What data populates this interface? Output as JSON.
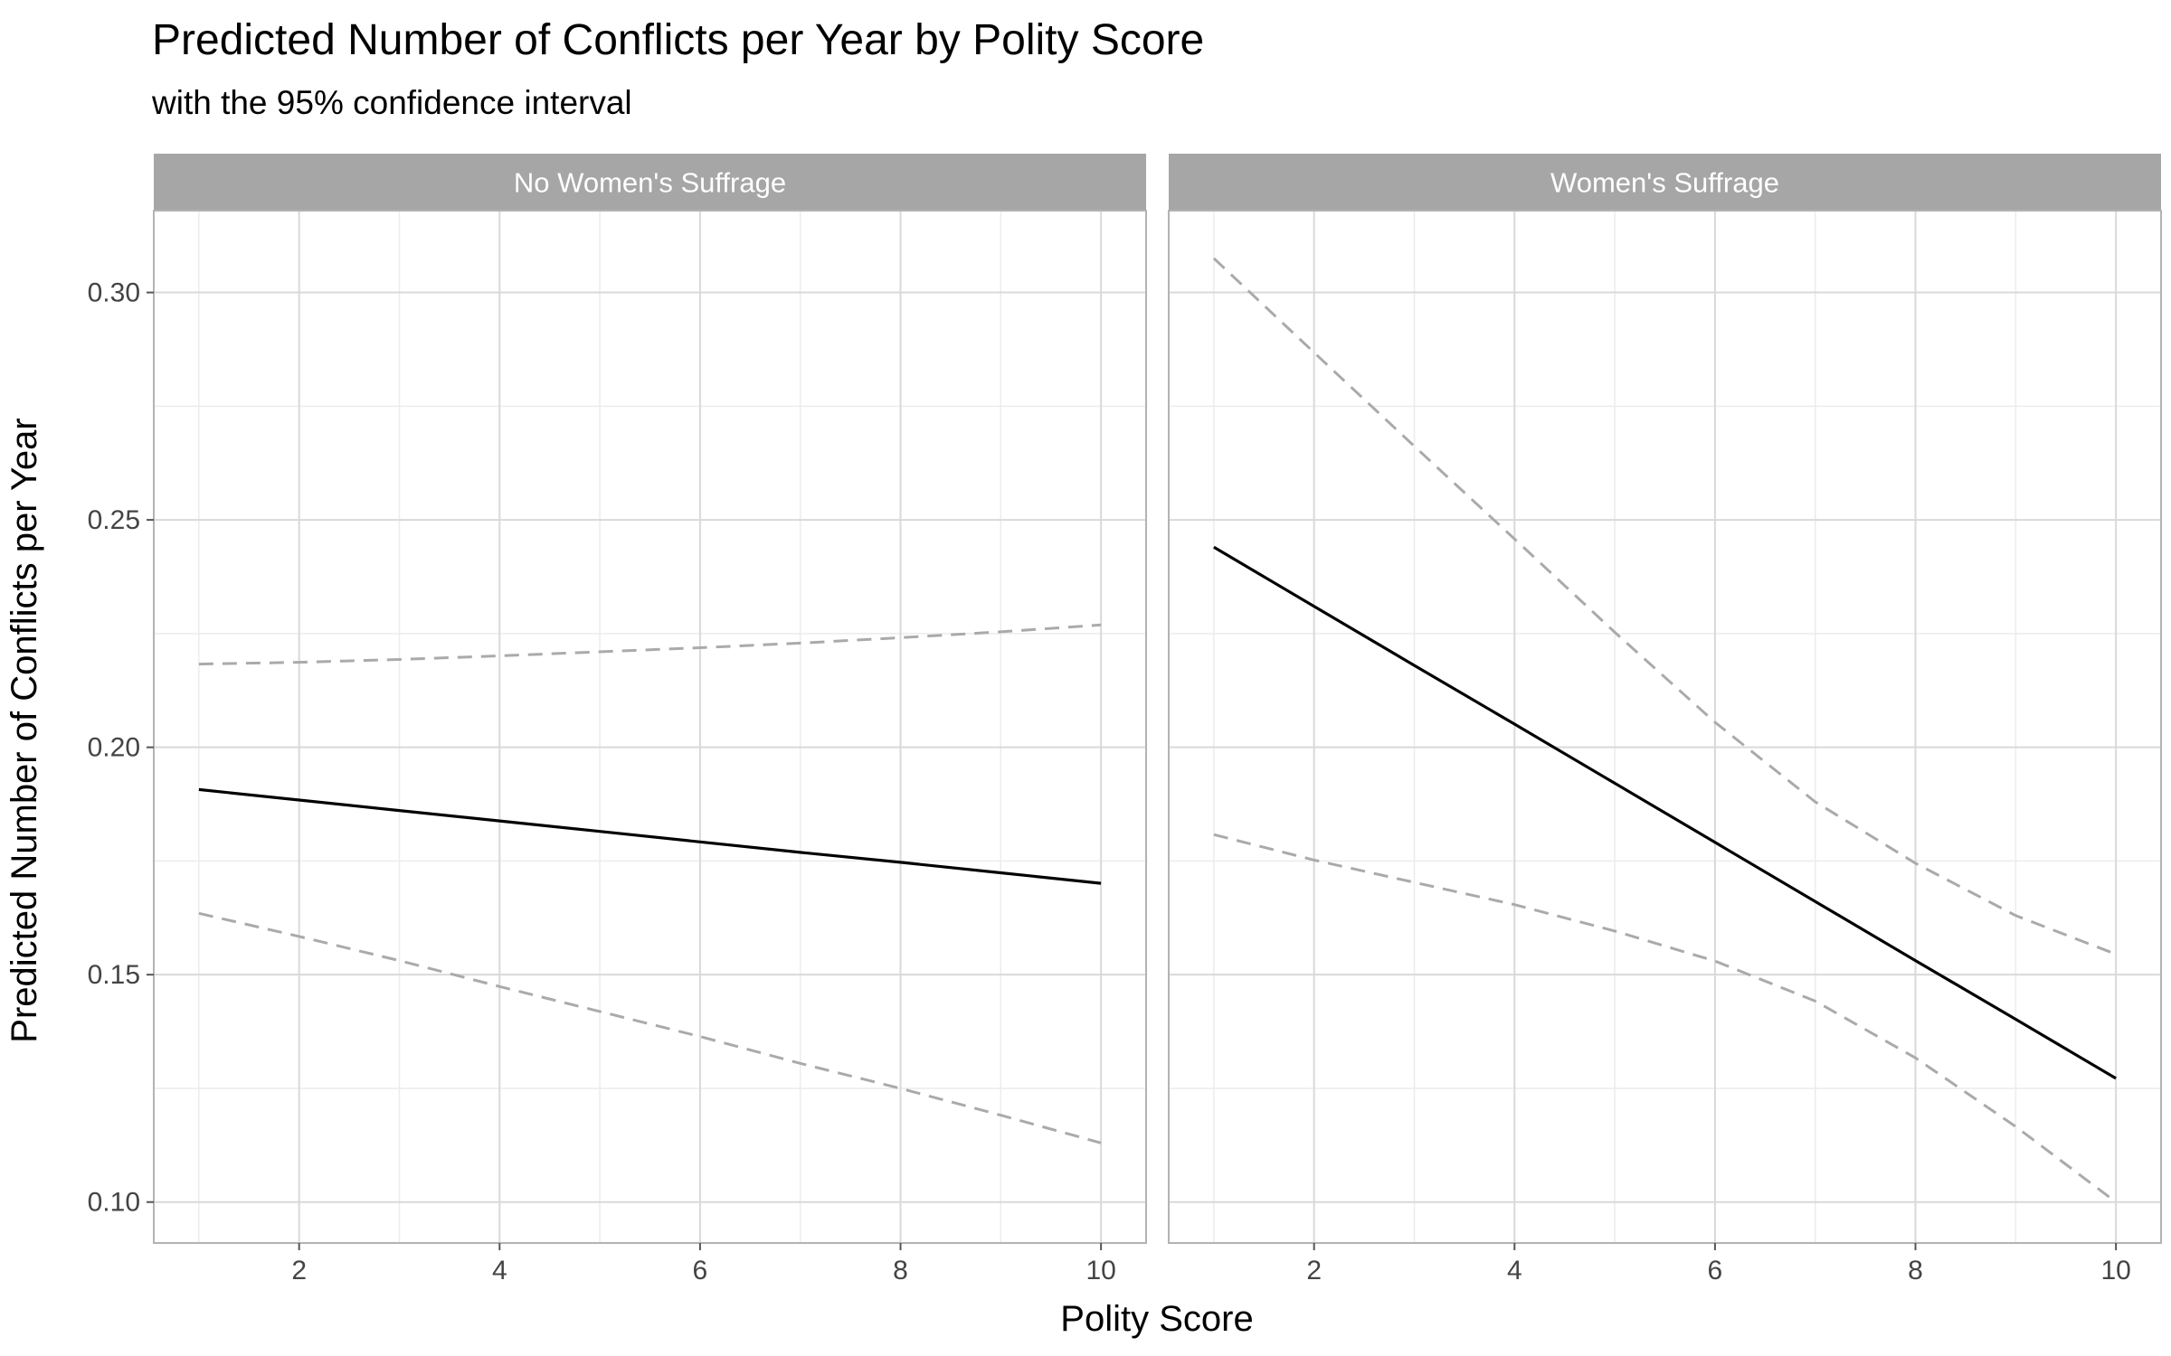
{
  "chart_data": {
    "type": "line",
    "title": "Predicted Number of Conflicts per Year by Polity Score",
    "subtitle": "with the 95% confidence interval",
    "xlabel": "Polity Score",
    "ylabel": "Predicted Number of Conflicts per Year",
    "xlim": [
      0.55,
      10.45
    ],
    "ylim": [
      0.091,
      0.318
    ],
    "x_ticks": [
      2,
      4,
      6,
      8,
      10
    ],
    "x_tick_labels": [
      "2",
      "4",
      "6",
      "8",
      "10"
    ],
    "y_ticks": [
      0.1,
      0.15,
      0.2,
      0.25,
      0.3
    ],
    "y_tick_labels": [
      "0.10",
      "0.15",
      "0.20",
      "0.25",
      "0.30"
    ],
    "grid": true,
    "facets": [
      {
        "label": "No Women's Suffrage",
        "x": [
          1,
          2,
          3,
          4,
          5,
          6,
          7,
          8,
          9,
          10
        ],
        "series": [
          {
            "role": "estimate",
            "values": [
              0.1907,
              0.1884,
              0.1861,
              0.1838,
              0.1815,
              0.1792,
              0.1769,
              0.1747,
              0.1724,
              0.1701
            ]
          },
          {
            "role": "upper",
            "values": [
              0.2183,
              0.2187,
              0.2193,
              0.2201,
              0.221,
              0.2219,
              0.2229,
              0.2241,
              0.2254,
              0.2269
            ]
          },
          {
            "role": "lower",
            "values": [
              0.1635,
              0.1584,
              0.1531,
              0.1474,
              0.1419,
              0.1364,
              0.1305,
              0.125,
              0.1191,
              0.113
            ]
          }
        ]
      },
      {
        "label": "Women's Suffrage",
        "x": [
          1,
          2,
          3,
          4,
          5,
          6,
          7,
          8,
          9,
          10
        ],
        "series": [
          {
            "role": "estimate",
            "values": [
              0.244,
              0.231,
              0.218,
              0.2051,
              0.1921,
              0.1791,
              0.1661,
              0.1531,
              0.1402,
              0.1272
            ]
          },
          {
            "role": "upper",
            "values": [
              0.3075,
              0.2868,
              0.2662,
              0.2458,
              0.2253,
              0.2055,
              0.188,
              0.1745,
              0.163,
              0.1545
            ]
          },
          {
            "role": "lower",
            "values": [
              0.1808,
              0.1752,
              0.1703,
              0.1654,
              0.1596,
              0.153,
              0.1442,
              0.1317,
              0.1166,
              0.1
            ]
          }
        ]
      }
    ]
  },
  "colors": {
    "estimate_line": "#000000",
    "ci_line": "#aaaaaa",
    "strip_background": "#a6a6a6",
    "strip_text": "#ffffff",
    "grid_major": "#d9d9d9",
    "grid_minor": "#ececec",
    "panel_border": "#b3b3b3"
  }
}
